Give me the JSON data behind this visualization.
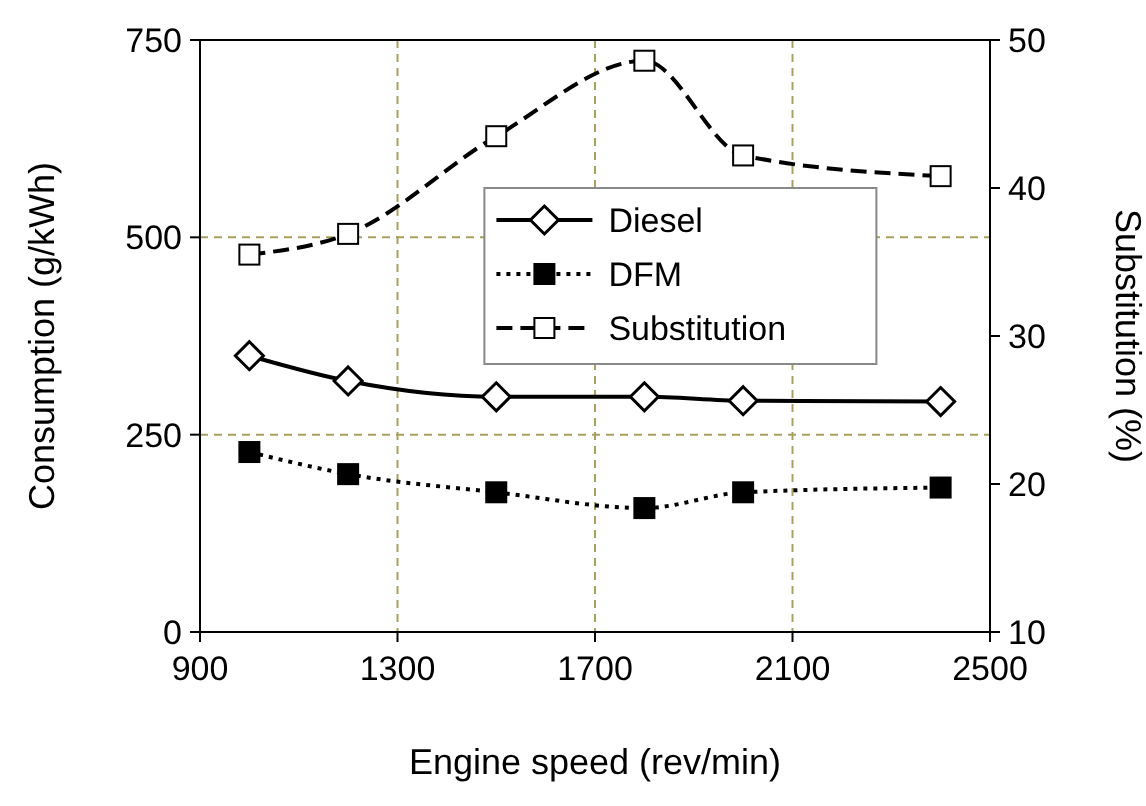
{
  "chart_data": {
    "type": "line",
    "xlabel": "Engine speed (rev/min)",
    "ylabel": "Consumption (g/kWh)",
    "y2label": "Substitution (%)",
    "xlim": [
      900,
      2500
    ],
    "xticks": [
      900,
      1300,
      1700,
      2100,
      2500
    ],
    "ylim": [
      0,
      750
    ],
    "yticks": [
      0,
      250,
      500,
      750
    ],
    "y2lim": [
      10,
      50
    ],
    "y2ticks": [
      10,
      20,
      30,
      40,
      50
    ],
    "grid": "xy",
    "legend": "center right",
    "series": [
      {
        "name": "Diesel",
        "color": "#000000",
        "x": [
          1000,
          1200,
          1500,
          1800,
          2000,
          2400
        ],
        "values": [
          350,
          318,
          298,
          298,
          293,
          292
        ],
        "marker": "diamond",
        "line_style": "solid"
      },
      {
        "name": "DFM",
        "color": "#000000",
        "x": [
          1000,
          1200,
          1500,
          1800,
          2000,
          2400
        ],
        "values": [
          228,
          200,
          177,
          157,
          177,
          183
        ],
        "marker": "square",
        "line_style": "dotted"
      },
      {
        "name": "Substitution",
        "color": "#000000",
        "axis": "y2",
        "x": [
          1000,
          1200,
          1500,
          1800,
          2000,
          2400
        ],
        "values": [
          35.5,
          36.9,
          43.5,
          48.6,
          42.2,
          40.8
        ],
        "marker": "square",
        "line_style": "dashed"
      }
    ]
  }
}
